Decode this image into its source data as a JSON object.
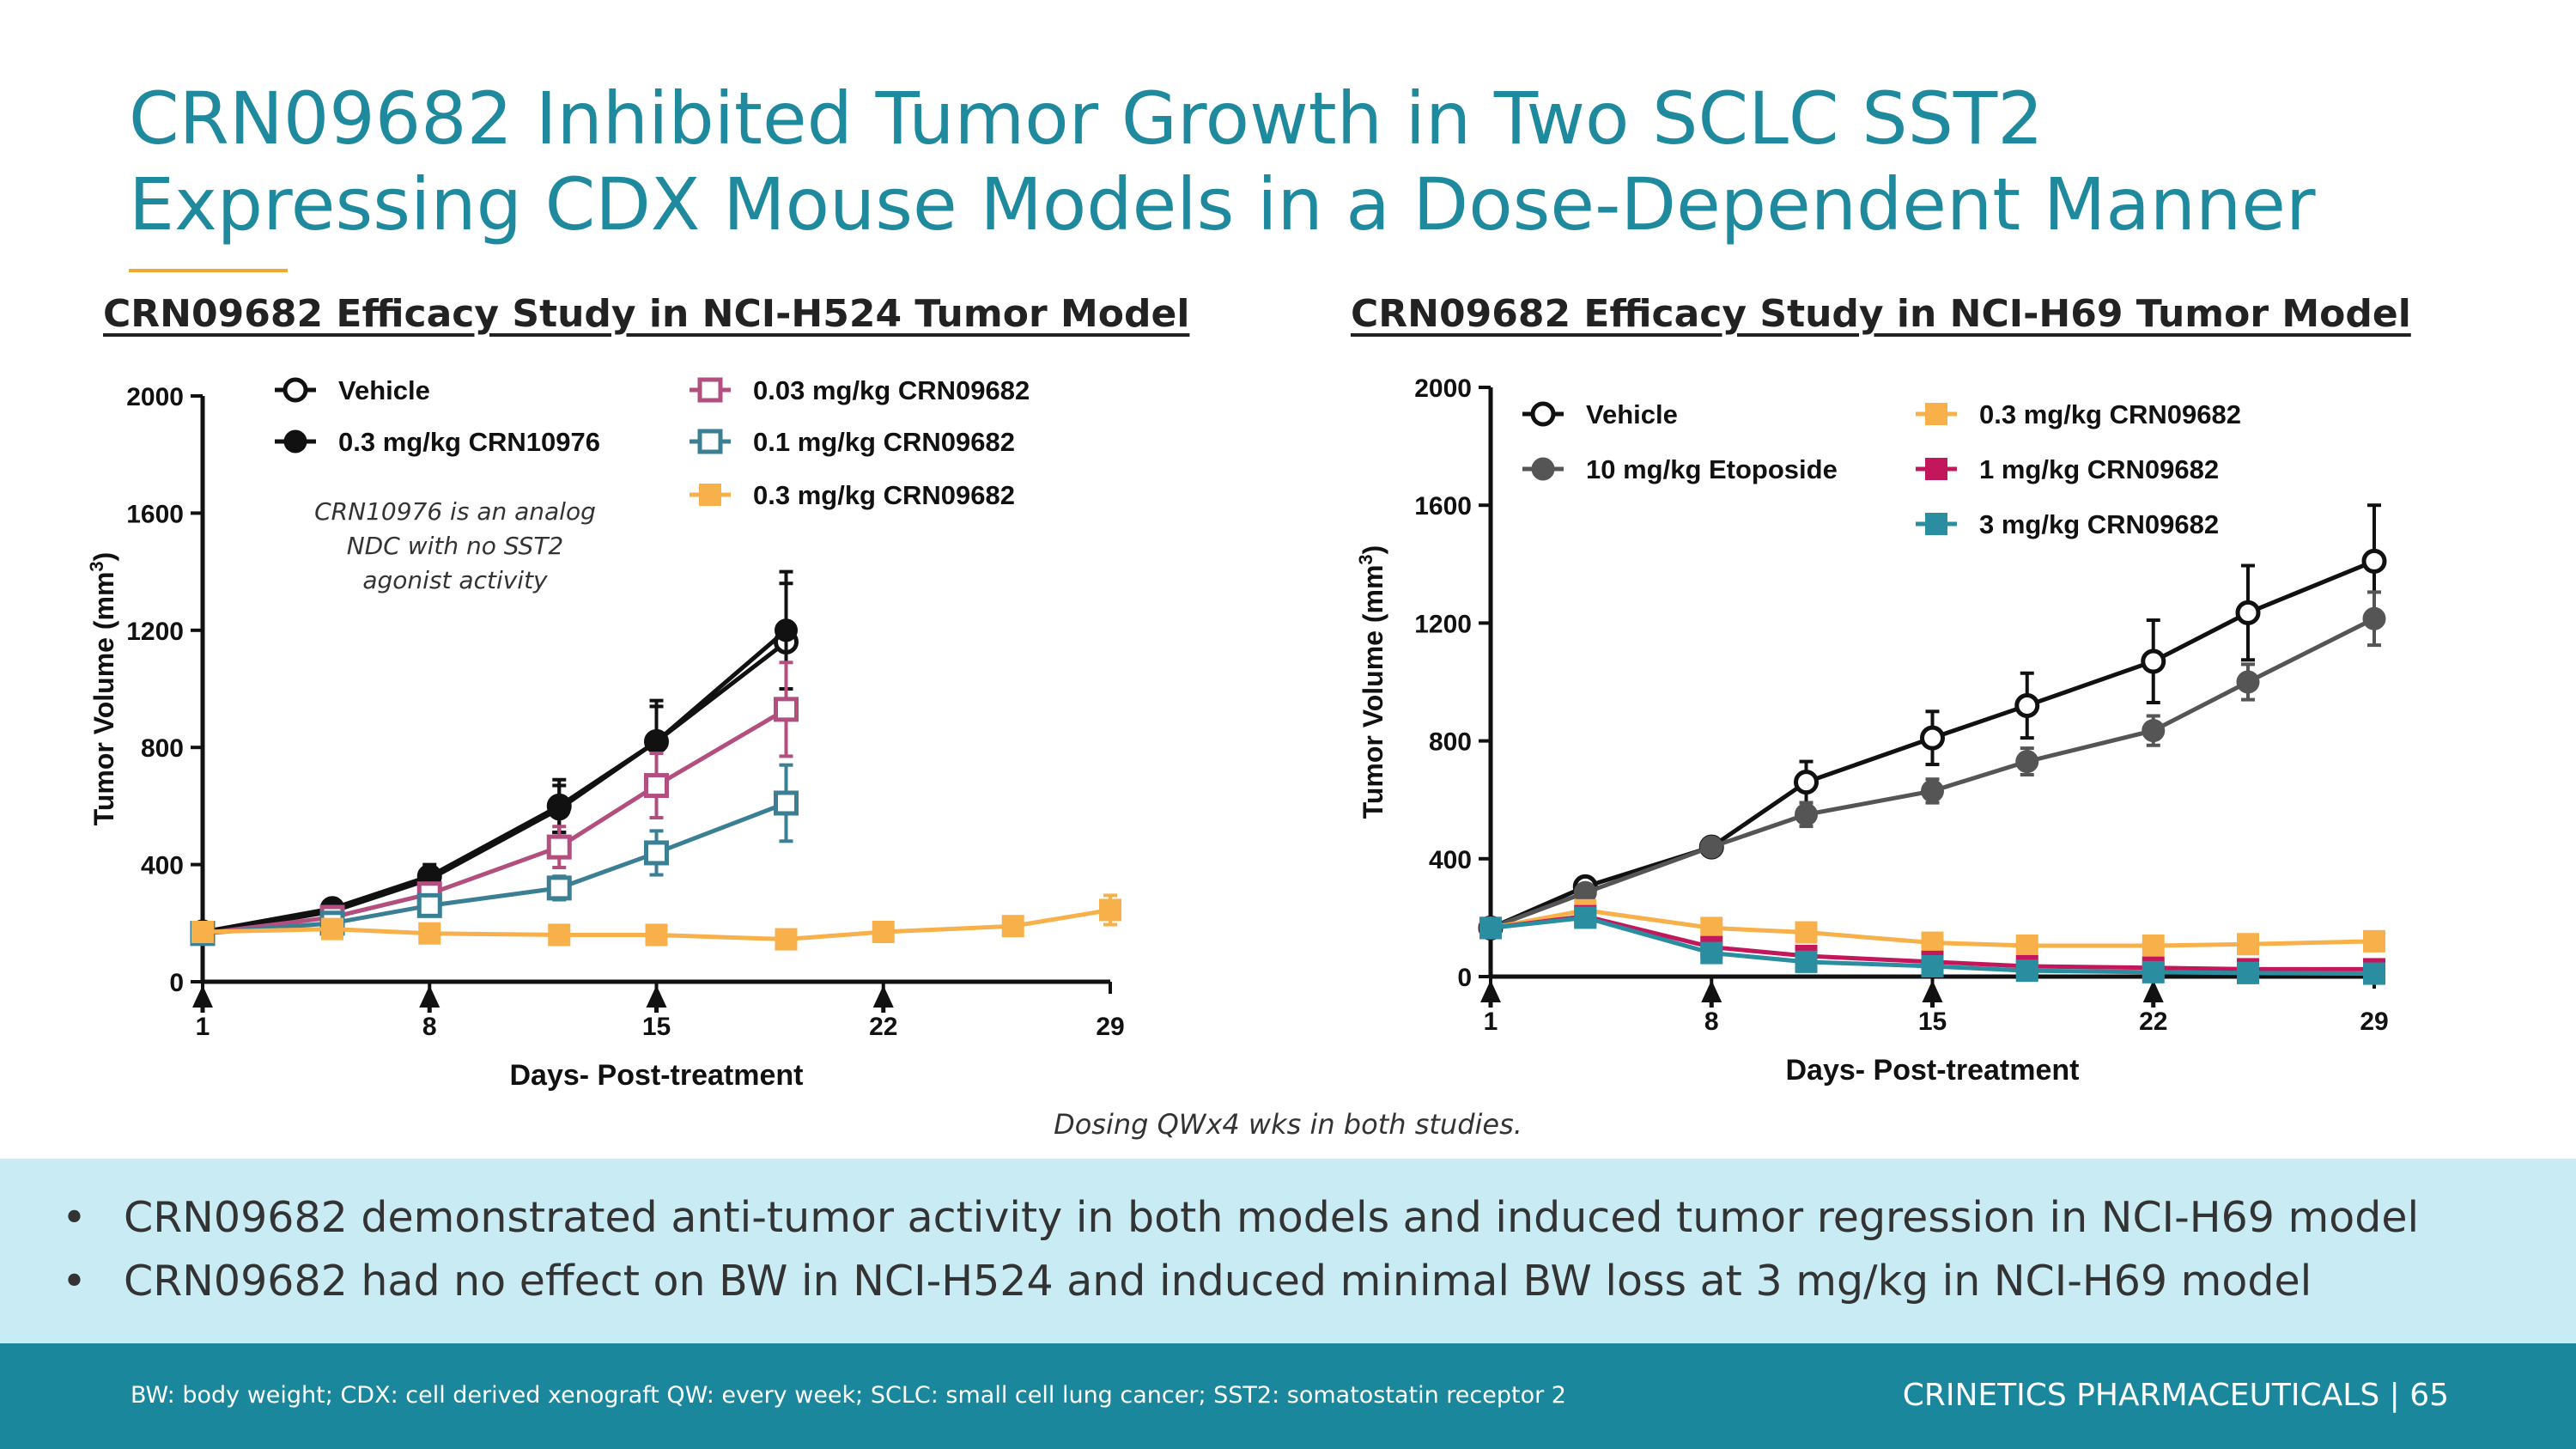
{
  "slide": {
    "title_line1": "CRN09682 Inhibited Tumor Growth in Two SCLC SST2",
    "title_line2": "Expressing CDX Mouse Models in a Dose-Dependent Manner",
    "dosing_note": "Dosing QWx4 wks in both studies.",
    "bullets": [
      "CRN09682 demonstrated anti-tumor activity in both models and induced tumor regression in NCI-H69 model",
      "CRN09682 had no effect on BW in NCI-H524 and induced minimal BW loss at 3 mg/kg in NCI-H69 model"
    ],
    "bullet_symbol": "•",
    "footnote": "BW: body weight; CDX: cell derived xenograft QW: every week; SCLC: small cell lung cancer; SST2: somatostatin receptor 2",
    "company": "CRINETICS PHARMACEUTICALS  |  65",
    "colors": {
      "title": "#1f8a9e",
      "accent_rule": "#f0a830",
      "band": "#c9ecf4",
      "footer": "#1b879c"
    }
  },
  "chart_data": [
    {
      "type": "line",
      "title": "CRN09682 Efficacy Study in NCI-H524 Tumor Model",
      "xlabel": "Days- Post-treatment",
      "ylabel_main": "Tumor Volume (mm",
      "ylabel_sup": "3",
      "ylabel_close": ")",
      "xlim": [
        1,
        29
      ],
      "ylim": [
        0,
        2000
      ],
      "xticks": [
        1,
        8,
        15,
        22,
        29
      ],
      "yticks": [
        0,
        400,
        800,
        1200,
        1600,
        2000
      ],
      "dosing_days": [
        1,
        8,
        15,
        22
      ],
      "annotation": [
        "CRN10976 is an analog",
        "NDC with no SST2",
        "agonist activity"
      ],
      "series": [
        {
          "name": "Vehicle",
          "color": "#111111",
          "marker": "circle-open",
          "x": [
            1,
            5,
            8,
            12,
            15,
            19
          ],
          "y": [
            170,
            250,
            360,
            600,
            820,
            1160
          ],
          "err": [
            20,
            25,
            40,
            90,
            140,
            200
          ]
        },
        {
          "name": "0.3 mg/kg CRN10976",
          "color": "#111111",
          "marker": "circle-filled",
          "x": [
            1,
            5,
            8,
            12,
            15,
            19
          ],
          "y": [
            165,
            240,
            350,
            590,
            820,
            1200
          ],
          "err": [
            20,
            25,
            35,
            80,
            120,
            200
          ]
        },
        {
          "name": "0.03  mg/kg CRN09682",
          "color": "#b24f7e",
          "marker": "square-open",
          "x": [
            1,
            5,
            8,
            12,
            15,
            19
          ],
          "y": [
            165,
            220,
            300,
            460,
            670,
            930
          ],
          "err": [
            15,
            20,
            30,
            70,
            110,
            160
          ]
        },
        {
          "name": "0.1 mg/kg CRN09682",
          "color": "#3a7f94",
          "marker": "square-open",
          "x": [
            1,
            5,
            8,
            12,
            15,
            19
          ],
          "y": [
            165,
            200,
            260,
            320,
            440,
            610
          ],
          "err": [
            15,
            20,
            25,
            40,
            75,
            130
          ]
        },
        {
          "name": "0.3 mg/kg CRN09682",
          "color": "#f7b04a",
          "marker": "square-filled",
          "x": [
            1,
            5,
            8,
            12,
            15,
            19,
            22,
            26,
            29
          ],
          "y": [
            170,
            180,
            165,
            160,
            160,
            145,
            170,
            190,
            245
          ],
          "err": [
            10,
            10,
            10,
            10,
            10,
            10,
            15,
            20,
            50
          ]
        }
      ]
    },
    {
      "type": "line",
      "title": "CRN09682 Efficacy Study in NCI-H69 Tumor Model",
      "xlabel": "Days- Post-treatment",
      "ylabel_main": "Tumor Volume (mm",
      "ylabel_sup": "3",
      "ylabel_close": ")",
      "xlim": [
        1,
        29
      ],
      "ylim": [
        0,
        2000
      ],
      "xticks": [
        1,
        8,
        15,
        22,
        29
      ],
      "yticks": [
        0,
        400,
        800,
        1200,
        1600,
        2000
      ],
      "dosing_days": [
        1,
        8,
        15,
        22
      ],
      "series": [
        {
          "name": "Vehicle",
          "color": "#111111",
          "marker": "circle-open",
          "x": [
            1,
            4,
            8,
            11,
            15,
            18,
            22,
            25,
            29
          ],
          "y": [
            165,
            305,
            440,
            660,
            810,
            920,
            1070,
            1235,
            1410
          ],
          "err": [
            15,
            20,
            25,
            70,
            90,
            110,
            140,
            160,
            190
          ]
        },
        {
          "name": "10 mg/kg Etoposide",
          "color": "#555555",
          "marker": "circle-filled",
          "x": [
            1,
            4,
            8,
            11,
            15,
            18,
            22,
            25,
            29
          ],
          "y": [
            165,
            285,
            440,
            550,
            630,
            730,
            835,
            1000,
            1215
          ],
          "err": [
            15,
            20,
            25,
            40,
            40,
            45,
            50,
            60,
            90
          ]
        },
        {
          "name": "0.3 mg/kg CRN09682",
          "color": "#f7b04a",
          "marker": "square-filled",
          "x": [
            1,
            4,
            8,
            11,
            15,
            18,
            22,
            25,
            29
          ],
          "y": [
            165,
            225,
            165,
            150,
            115,
            105,
            105,
            110,
            120
          ],
          "err": [
            10,
            15,
            15,
            15,
            12,
            10,
            10,
            10,
            10
          ]
        },
        {
          "name": "1  mg/kg CRN09682",
          "color": "#c2185b",
          "marker": "square-filled",
          "x": [
            1,
            4,
            8,
            11,
            15,
            18,
            22,
            25,
            29
          ],
          "y": [
            165,
            205,
            100,
            70,
            50,
            35,
            30,
            25,
            25
          ],
          "err": [
            10,
            15,
            10,
            8,
            6,
            5,
            5,
            5,
            5
          ]
        },
        {
          "name": "3 mg/kg CRN09682",
          "color": "#2a8ea0",
          "marker": "square-filled",
          "x": [
            1,
            4,
            8,
            11,
            15,
            18,
            22,
            25,
            29
          ],
          "y": [
            165,
            200,
            80,
            50,
            35,
            20,
            15,
            12,
            10
          ],
          "err": [
            10,
            15,
            10,
            6,
            5,
            4,
            3,
            3,
            3
          ]
        }
      ]
    }
  ]
}
